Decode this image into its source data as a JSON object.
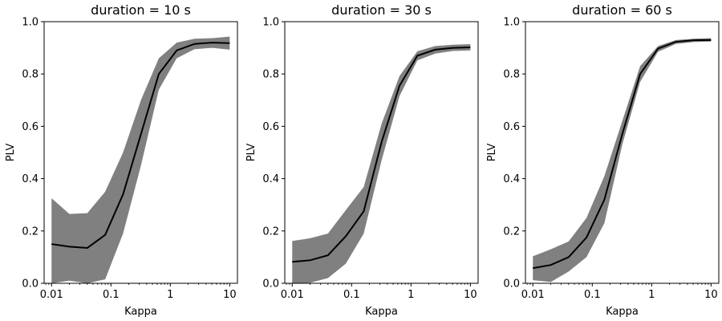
{
  "chart_data": [
    {
      "type": "line",
      "title": "duration = 10 s",
      "xlabel": "Kappa",
      "ylabel": "PLV",
      "xscale": "log",
      "xlim": [
        0.0075,
        13.5
      ],
      "ylim": [
        0,
        1
      ],
      "xticks": [
        0.01,
        0.1,
        1,
        10
      ],
      "xtick_labels": [
        "0.01",
        "0.1",
        "1",
        "10"
      ],
      "yticks": [
        0,
        0.2,
        0.4,
        0.6,
        0.8,
        1
      ],
      "ytick_labels": [
        "0.0",
        "0.2",
        "0.4",
        "0.6",
        "0.8",
        "1.0"
      ],
      "grid": false,
      "colors": {
        "line": "#000000",
        "band": "#808080"
      },
      "x": [
        0.01,
        0.02,
        0.04,
        0.08,
        0.16,
        0.32,
        0.64,
        1.28,
        2.56,
        5.12,
        10
      ],
      "series": [
        {
          "values": [
            0.15,
            0.14,
            0.135,
            0.185,
            0.34,
            0.57,
            0.8,
            0.89,
            0.915,
            0.92,
            0.918
          ],
          "lower": [
            0.0,
            0.01,
            0.0,
            0.015,
            0.19,
            0.45,
            0.74,
            0.86,
            0.895,
            0.9,
            0.893
          ],
          "upper": [
            0.325,
            0.265,
            0.268,
            0.35,
            0.5,
            0.7,
            0.86,
            0.92,
            0.935,
            0.937,
            0.943
          ]
        }
      ]
    },
    {
      "type": "line",
      "title": "duration = 30 s",
      "xlabel": "Kappa",
      "ylabel": "PLV",
      "xscale": "log",
      "xlim": [
        0.0075,
        13.5
      ],
      "ylim": [
        0,
        1
      ],
      "xticks": [
        0.01,
        0.1,
        1,
        10
      ],
      "xtick_labels": [
        "0.01",
        "0.1",
        "1",
        "10"
      ],
      "yticks": [
        0,
        0.2,
        0.4,
        0.6,
        0.8,
        1
      ],
      "ytick_labels": [
        "0.0",
        "0.2",
        "0.4",
        "0.6",
        "0.8",
        "1.0"
      ],
      "grid": false,
      "colors": {
        "line": "#000000",
        "band": "#808080"
      },
      "x": [
        0.01,
        0.02,
        0.04,
        0.08,
        0.16,
        0.32,
        0.64,
        1.28,
        2.56,
        5.12,
        10
      ],
      "series": [
        {
          "values": [
            0.082,
            0.088,
            0.107,
            0.18,
            0.275,
            0.54,
            0.755,
            0.87,
            0.893,
            0.9,
            0.902
          ],
          "lower": [
            0.0,
            0.002,
            0.02,
            0.075,
            0.19,
            0.47,
            0.715,
            0.852,
            0.878,
            0.888,
            0.89
          ],
          "upper": [
            0.162,
            0.172,
            0.19,
            0.28,
            0.368,
            0.61,
            0.792,
            0.887,
            0.907,
            0.912,
            0.914
          ]
        }
      ]
    },
    {
      "type": "line",
      "title": "duration = 60 s",
      "xlabel": "Kappa",
      "ylabel": "PLV",
      "xscale": "log",
      "xlim": [
        0.0075,
        13.5
      ],
      "ylim": [
        0,
        1
      ],
      "xticks": [
        0.01,
        0.1,
        1,
        10
      ],
      "xtick_labels": [
        "0.01",
        "0.1",
        "1",
        "10"
      ],
      "yticks": [
        0,
        0.2,
        0.4,
        0.6,
        0.8,
        1
      ],
      "ytick_labels": [
        "0.0",
        "0.2",
        "0.4",
        "0.6",
        "0.8",
        "1.0"
      ],
      "grid": false,
      "colors": {
        "line": "#000000",
        "band": "#808080"
      },
      "x": [
        0.01,
        0.02,
        0.04,
        0.08,
        0.16,
        0.32,
        0.64,
        1.28,
        2.56,
        5.12,
        10
      ],
      "series": [
        {
          "values": [
            0.058,
            0.07,
            0.1,
            0.175,
            0.32,
            0.57,
            0.8,
            0.897,
            0.923,
            0.929,
            0.93
          ],
          "lower": [
            0.012,
            0.005,
            0.045,
            0.1,
            0.23,
            0.53,
            0.77,
            0.885,
            0.915,
            0.922,
            0.924
          ],
          "upper": [
            0.103,
            0.13,
            0.16,
            0.25,
            0.41,
            0.62,
            0.83,
            0.907,
            0.93,
            0.935,
            0.937
          ]
        }
      ]
    }
  ]
}
